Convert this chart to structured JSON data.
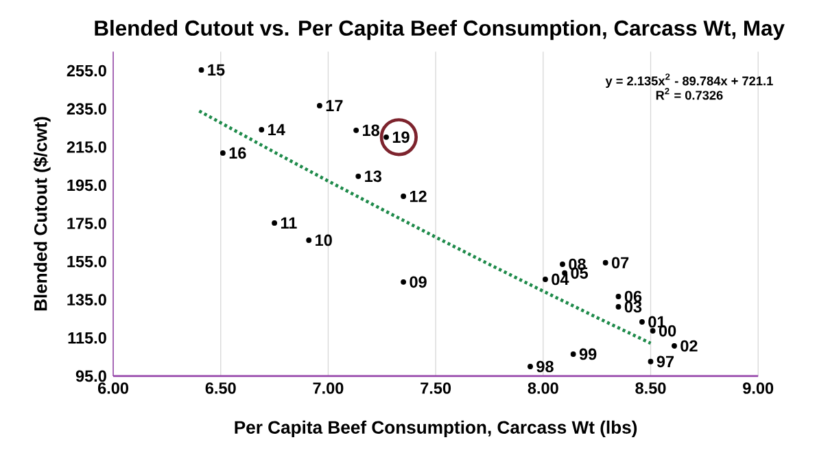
{
  "chart_data": {
    "type": "scatter",
    "title": "Blended Cutout vs. Per Capita Beef Consumption, Carcass Wt, May",
    "xlabel": "Per Capita Beef Consumption, Carcass Wt (lbs)",
    "ylabel": "Blended Cutout ($/cwt)",
    "xlim": [
      6,
      9
    ],
    "ylim": [
      95,
      265
    ],
    "xticks": [
      {
        "value": 6,
        "label": "6.00"
      },
      {
        "value": 6.5,
        "label": "6.50"
      },
      {
        "value": 7,
        "label": "7.00"
      },
      {
        "value": 7.5,
        "label": "7.50"
      },
      {
        "value": 8,
        "label": "8.00"
      },
      {
        "value": 8.5,
        "label": "8.50"
      },
      {
        "value": 9,
        "label": "9.00"
      }
    ],
    "yticks": [
      {
        "value": 95,
        "label": "95.0"
      },
      {
        "value": 115,
        "label": "115.0"
      },
      {
        "value": 135,
        "label": "135.0"
      },
      {
        "value": 155,
        "label": "155.0"
      },
      {
        "value": 175,
        "label": "175.0"
      },
      {
        "value": 195,
        "label": "195.0"
      },
      {
        "value": 215,
        "label": "215.0"
      },
      {
        "value": 235,
        "label": "235.0"
      },
      {
        "value": 255,
        "label": "255.0"
      }
    ],
    "grid": "x",
    "series": [
      {
        "color": "#000000",
        "marker": "circle",
        "x": [
          6.41,
          6.96,
          6.69,
          7.13,
          7.27,
          6.51,
          7.14,
          7.35,
          6.75,
          6.91,
          7.35,
          8.09,
          8.29,
          8.1,
          8.01,
          8.35,
          8.35,
          8.46,
          8.51,
          8.61,
          8.14,
          8.5,
          7.94
        ],
        "values": [
          255.4,
          236.7,
          224.1,
          223.8,
          220.2,
          211.9,
          199.7,
          189.2,
          175.2,
          166.2,
          144.3,
          153.6,
          154.4,
          149,
          145.7,
          136.7,
          131.3,
          123.4,
          118.7,
          110.8,
          106.5,
          102.6,
          100
        ]
      },
      {
        "type": "line",
        "color": "#1e8a4a",
        "line_style": "dotted",
        "marker": "none",
        "x": [
          6.4,
          6.75,
          7.0,
          7.25,
          7.5,
          7.75,
          8.0,
          8.25,
          8.5
        ],
        "values": [
          233.9,
          212.3,
          197.2,
          182.4,
          167.8,
          153.5,
          139.5,
          125.7,
          112.2
        ]
      }
    ],
    "annotations": [
      "y = 2.135x$^{2}$ - 89.784x + 721.1",
      "R$^{2}$ = 0.7326",
      {
        "text": "15",
        "x": 6.41,
        "y": 255.4
      },
      {
        "text": "17",
        "x": 6.96,
        "y": 236.7
      },
      {
        "text": "14",
        "x": 6.69,
        "y": 224.1
      },
      {
        "text": "18",
        "x": 7.13,
        "y": 223.8
      },
      {
        "text": "19",
        "x": 7.27,
        "y": 220.2
      },
      {
        "text": "16",
        "x": 6.51,
        "y": 211.9
      },
      {
        "text": "13",
        "x": 7.14,
        "y": 199.7
      },
      {
        "text": "12",
        "x": 7.35,
        "y": 189.2
      },
      {
        "text": "11",
        "x": 6.75,
        "y": 175.2
      },
      {
        "text": "10",
        "x": 6.91,
        "y": 166.2
      },
      {
        "text": "09",
        "x": 7.35,
        "y": 144.3
      },
      {
        "text": "08",
        "x": 8.09,
        "y": 153.6
      },
      {
        "text": "07",
        "x": 8.29,
        "y": 154.4
      },
      {
        "text": "05",
        "x": 8.1,
        "y": 149
      },
      {
        "text": "04",
        "x": 8.01,
        "y": 145.7
      },
      {
        "text": "06",
        "x": 8.35,
        "y": 136.7
      },
      {
        "text": "03",
        "x": 8.35,
        "y": 131.3
      },
      {
        "text": "01",
        "x": 8.46,
        "y": 123.4
      },
      {
        "text": "00",
        "x": 8.51,
        "y": 118.7
      },
      {
        "text": "02",
        "x": 8.61,
        "y": 110.8
      },
      {
        "text": "99",
        "x": 8.14,
        "y": 106.5
      },
      {
        "text": "97",
        "x": 8.5,
        "y": 102.6
      },
      {
        "text": "98",
        "x": 7.94,
        "y": 100
      }
    ]
  }
}
